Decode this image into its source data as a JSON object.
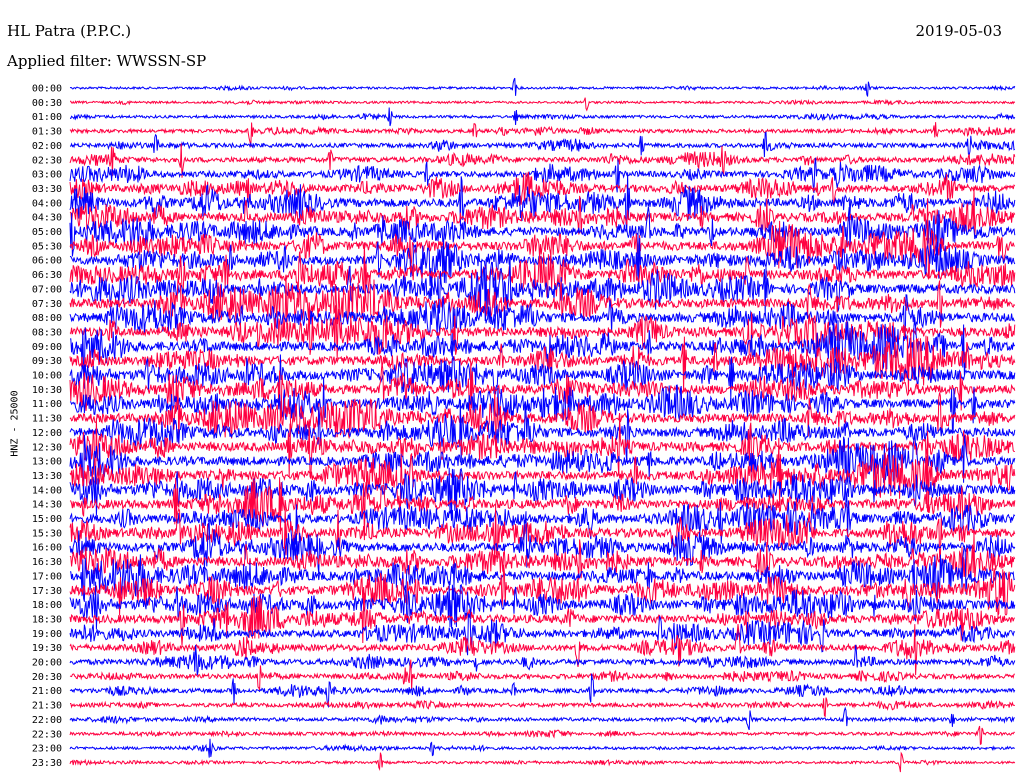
{
  "header": {
    "station": "HL Patra (P.P.C.)",
    "filter": "Applied filter: WWSSN-SP",
    "date": "2019-05-03"
  },
  "chart_data": {
    "type": "line",
    "title": "HL Patra (P.P.C.)",
    "subtitle": "Applied filter: WWSSN-SP",
    "date": "2019-05-03",
    "ylabel": "HNZ - 25000",
    "xlabel": "",
    "row_labels": [
      "00:00",
      "00:30",
      "01:00",
      "01:30",
      "02:00",
      "02:30",
      "03:00",
      "03:30",
      "04:00",
      "04:30",
      "05:00",
      "05:30",
      "06:00",
      "06:30",
      "07:00",
      "07:30",
      "08:00",
      "08:30",
      "09:00",
      "09:30",
      "10:00",
      "10:30",
      "11:00",
      "11:30",
      "12:00",
      "12:30",
      "13:00",
      "13:30",
      "14:00",
      "14:30",
      "15:00",
      "15:30",
      "16:00",
      "16:30",
      "17:00",
      "17:30",
      "18:00",
      "18:30",
      "19:00",
      "19:30",
      "20:00",
      "20:30",
      "21:00",
      "21:30",
      "22:00",
      "22:30",
      "23:00",
      "23:30"
    ],
    "trace_colors": [
      "#0000ff",
      "#ff0040"
    ],
    "relative_activity": [
      0.12,
      0.12,
      0.18,
      0.28,
      0.35,
      0.45,
      0.55,
      0.7,
      0.85,
      0.85,
      0.85,
      0.88,
      0.88,
      0.9,
      0.92,
      0.92,
      0.92,
      0.92,
      0.92,
      0.9,
      0.9,
      0.9,
      0.9,
      0.9,
      0.9,
      0.9,
      0.9,
      0.9,
      0.9,
      0.9,
      0.9,
      0.9,
      0.9,
      0.9,
      0.9,
      0.88,
      0.85,
      0.8,
      0.7,
      0.6,
      0.5,
      0.42,
      0.36,
      0.3,
      0.26,
      0.22,
      0.18,
      0.15
    ]
  }
}
